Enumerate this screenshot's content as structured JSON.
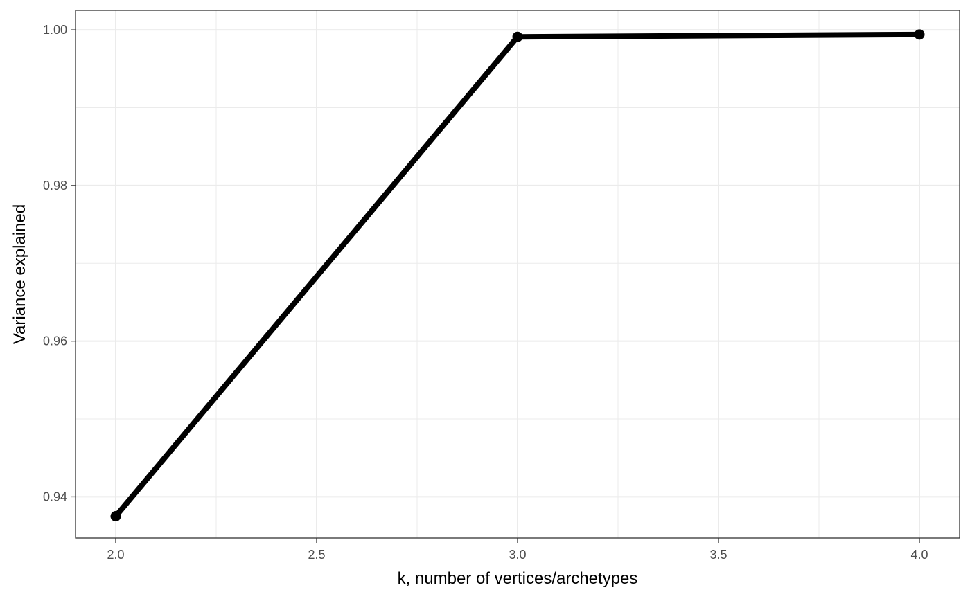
{
  "chart_data": {
    "type": "line",
    "title": "",
    "xlabel": "k, number of vertices/archetypes",
    "ylabel": "Variance explained",
    "x": [
      2,
      3,
      4
    ],
    "series": [
      {
        "values": [
          0.9375,
          0.9991,
          0.9994
        ]
      }
    ],
    "xlim": [
      1.9,
      4.1
    ],
    "ylim": [
      0.9347,
      1.0025
    ],
    "x_ticks": [
      2.0,
      2.5,
      3.0,
      3.5,
      4.0
    ],
    "x_tick_labels": [
      "2.0",
      "2.5",
      "3.0",
      "3.5",
      "4.0"
    ],
    "y_ticks": [
      0.94,
      0.96,
      0.98,
      1.0
    ],
    "y_tick_labels": [
      "0.94",
      "0.96",
      "0.98",
      "1.00"
    ],
    "grid": true,
    "legend": "none",
    "colors": {
      "line": "#000000",
      "grid": "#ebebeb",
      "border": "#333333",
      "tick_text": "#4d4d4d"
    }
  }
}
